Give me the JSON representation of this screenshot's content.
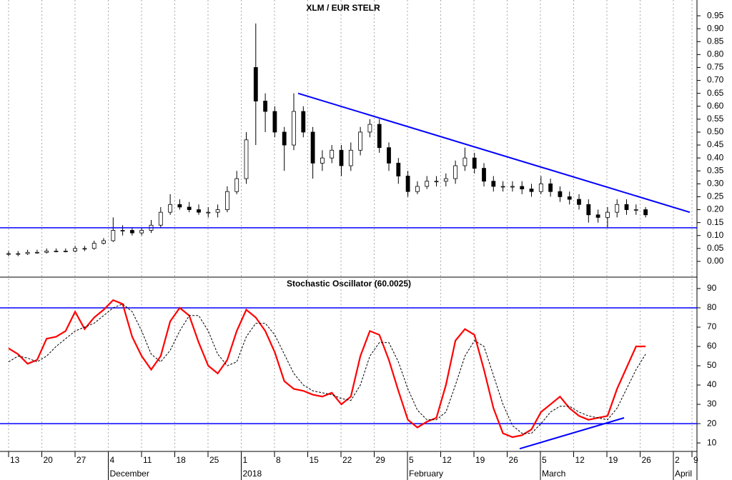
{
  "chart_data": [
    {
      "type": "candlestick",
      "title": "XLM / EUR STELR",
      "open": [
        0.03,
        0.03,
        0.03,
        0.035,
        0.035,
        0.04,
        0.04,
        0.04,
        0.05,
        0.05,
        0.07,
        0.08,
        0.12,
        0.12,
        0.11,
        0.12,
        0.14,
        0.19,
        0.22,
        0.21,
        0.2,
        0.19,
        0.19,
        0.2,
        0.27,
        0.32,
        0.75,
        0.62,
        0.58,
        0.5,
        0.45,
        0.58,
        0.5,
        0.38,
        0.4,
        0.43,
        0.37,
        0.43,
        0.5,
        0.53,
        0.44,
        0.38,
        0.33,
        0.27,
        0.29,
        0.31,
        0.31,
        0.32,
        0.37,
        0.4,
        0.36,
        0.31,
        0.29,
        0.29,
        0.29,
        0.28,
        0.27,
        0.3,
        0.27,
        0.25,
        0.24,
        0.22,
        0.18,
        0.17,
        0.19,
        0.22,
        0.2,
        0.2
      ],
      "high": [
        0.04,
        0.04,
        0.045,
        0.045,
        0.05,
        0.05,
        0.05,
        0.06,
        0.06,
        0.08,
        0.09,
        0.17,
        0.14,
        0.13,
        0.13,
        0.16,
        0.21,
        0.26,
        0.24,
        0.23,
        0.22,
        0.21,
        0.22,
        0.29,
        0.35,
        0.5,
        0.92,
        0.65,
        0.6,
        0.52,
        0.65,
        0.6,
        0.52,
        0.43,
        0.45,
        0.45,
        0.46,
        0.52,
        0.55,
        0.55,
        0.46,
        0.4,
        0.35,
        0.31,
        0.33,
        0.33,
        0.34,
        0.39,
        0.44,
        0.42,
        0.38,
        0.33,
        0.31,
        0.31,
        0.31,
        0.3,
        0.33,
        0.32,
        0.29,
        0.27,
        0.26,
        0.24,
        0.2,
        0.21,
        0.24,
        0.24,
        0.22,
        0.21
      ],
      "low": [
        0.02,
        0.02,
        0.025,
        0.03,
        0.03,
        0.035,
        0.035,
        0.035,
        0.04,
        0.045,
        0.065,
        0.075,
        0.1,
        0.1,
        0.1,
        0.11,
        0.13,
        0.18,
        0.2,
        0.19,
        0.18,
        0.17,
        0.17,
        0.19,
        0.26,
        0.3,
        0.45,
        0.5,
        0.48,
        0.35,
        0.43,
        0.48,
        0.32,
        0.35,
        0.38,
        0.33,
        0.35,
        0.41,
        0.48,
        0.42,
        0.35,
        0.3,
        0.25,
        0.26,
        0.28,
        0.29,
        0.29,
        0.3,
        0.35,
        0.34,
        0.29,
        0.27,
        0.27,
        0.27,
        0.26,
        0.25,
        0.26,
        0.25,
        0.23,
        0.22,
        0.2,
        0.15,
        0.15,
        0.13,
        0.17,
        0.18,
        0.18,
        0.17
      ],
      "close": [
        0.03,
        0.03,
        0.035,
        0.035,
        0.04,
        0.04,
        0.04,
        0.05,
        0.05,
        0.07,
        0.08,
        0.12,
        0.12,
        0.11,
        0.12,
        0.14,
        0.19,
        0.22,
        0.21,
        0.2,
        0.19,
        0.19,
        0.2,
        0.27,
        0.32,
        0.47,
        0.62,
        0.58,
        0.5,
        0.45,
        0.58,
        0.5,
        0.38,
        0.4,
        0.43,
        0.37,
        0.43,
        0.5,
        0.53,
        0.44,
        0.38,
        0.33,
        0.27,
        0.29,
        0.31,
        0.31,
        0.32,
        0.37,
        0.4,
        0.36,
        0.31,
        0.29,
        0.29,
        0.29,
        0.28,
        0.27,
        0.3,
        0.27,
        0.25,
        0.24,
        0.22,
        0.18,
        0.17,
        0.19,
        0.22,
        0.2,
        0.2,
        0.18
      ],
      "ylim": [
        -0.061,
        1.011
      ],
      "yticks": [
        {
          "value": 0,
          "label": "0.00"
        },
        {
          "value": 0.05,
          "label": "0.05"
        },
        {
          "value": 0.1,
          "label": "0.10"
        },
        {
          "value": 0.15,
          "label": "0.15"
        },
        {
          "value": 0.2,
          "label": "0.20"
        },
        {
          "value": 0.25,
          "label": "0.25"
        },
        {
          "value": 0.3,
          "label": "0.30"
        },
        {
          "value": 0.35,
          "label": "0.35"
        },
        {
          "value": 0.4,
          "label": "0.40"
        },
        {
          "value": 0.45,
          "label": "0.45"
        },
        {
          "value": 0.5,
          "label": "0.50"
        },
        {
          "value": 0.55,
          "label": "0.55"
        },
        {
          "value": 0.6,
          "label": "0.60"
        },
        {
          "value": 0.65,
          "label": "0.65"
        },
        {
          "value": 0.7,
          "label": "0.70"
        },
        {
          "value": 0.75,
          "label": "0.75"
        },
        {
          "value": 0.8,
          "label": "0.80"
        },
        {
          "value": 0.85,
          "label": "0.85"
        },
        {
          "value": 0.9,
          "label": "0.90"
        },
        {
          "value": 0.95,
          "label": "0.95"
        }
      ],
      "trendline": [
        0.65,
        0.19
      ],
      "support": 0.13,
      "line_color": "#0000ff"
    },
    {
      "type": "line",
      "title": "Stochastic Oscillator (60.0025)",
      "series": [
        {
          "color": "#ff0000",
          "values": [
            59,
            56,
            51,
            53,
            64,
            65,
            68,
            78,
            69,
            75,
            79,
            84,
            82,
            65,
            55,
            48,
            55,
            73,
            80,
            76,
            62,
            50,
            46,
            53,
            68,
            79,
            75,
            68,
            57,
            42,
            38,
            37,
            35,
            34,
            36,
            30,
            34,
            55,
            68,
            66,
            53,
            37,
            22,
            18,
            21,
            23,
            40,
            63,
            69,
            66,
            48,
            28,
            15,
            13,
            14,
            17,
            26,
            30,
            34,
            28,
            24,
            22,
            23,
            24,
            38,
            49,
            60,
            60
          ]
        },
        {
          "color": "#000000",
          "values": [
            52,
            55,
            54,
            52,
            55,
            60,
            64,
            68,
            70,
            72,
            76,
            80,
            82,
            78,
            68,
            56,
            52,
            58,
            68,
            76,
            76,
            68,
            56,
            50,
            52,
            65,
            72,
            72,
            66,
            56,
            46,
            40,
            37,
            36,
            35,
            33,
            32,
            40,
            55,
            62,
            62,
            52,
            38,
            27,
            22,
            22,
            26,
            40,
            55,
            63,
            60,
            45,
            30,
            19,
            15,
            15,
            20,
            26,
            29,
            29,
            26,
            24,
            23,
            22,
            28,
            38,
            48,
            56
          ]
        }
      ],
      "ylim": [
        5.6,
        95.9
      ],
      "yticks": [
        10,
        20,
        30,
        40,
        50,
        60,
        70,
        80,
        90
      ],
      "levels": [
        80,
        20
      ],
      "trendline": [
        7,
        23
      ],
      "line_color": "#0000ff",
      "xticks": [
        "13",
        "20",
        "27",
        "4",
        "11",
        "18",
        "25",
        "1",
        "8",
        "15",
        "22",
        "29",
        "5",
        "12",
        "19",
        "26",
        "5",
        "12",
        "19",
        "26",
        "2",
        "9"
      ],
      "months": [
        "December",
        "2018",
        "February",
        "March",
        "April"
      ]
    }
  ]
}
